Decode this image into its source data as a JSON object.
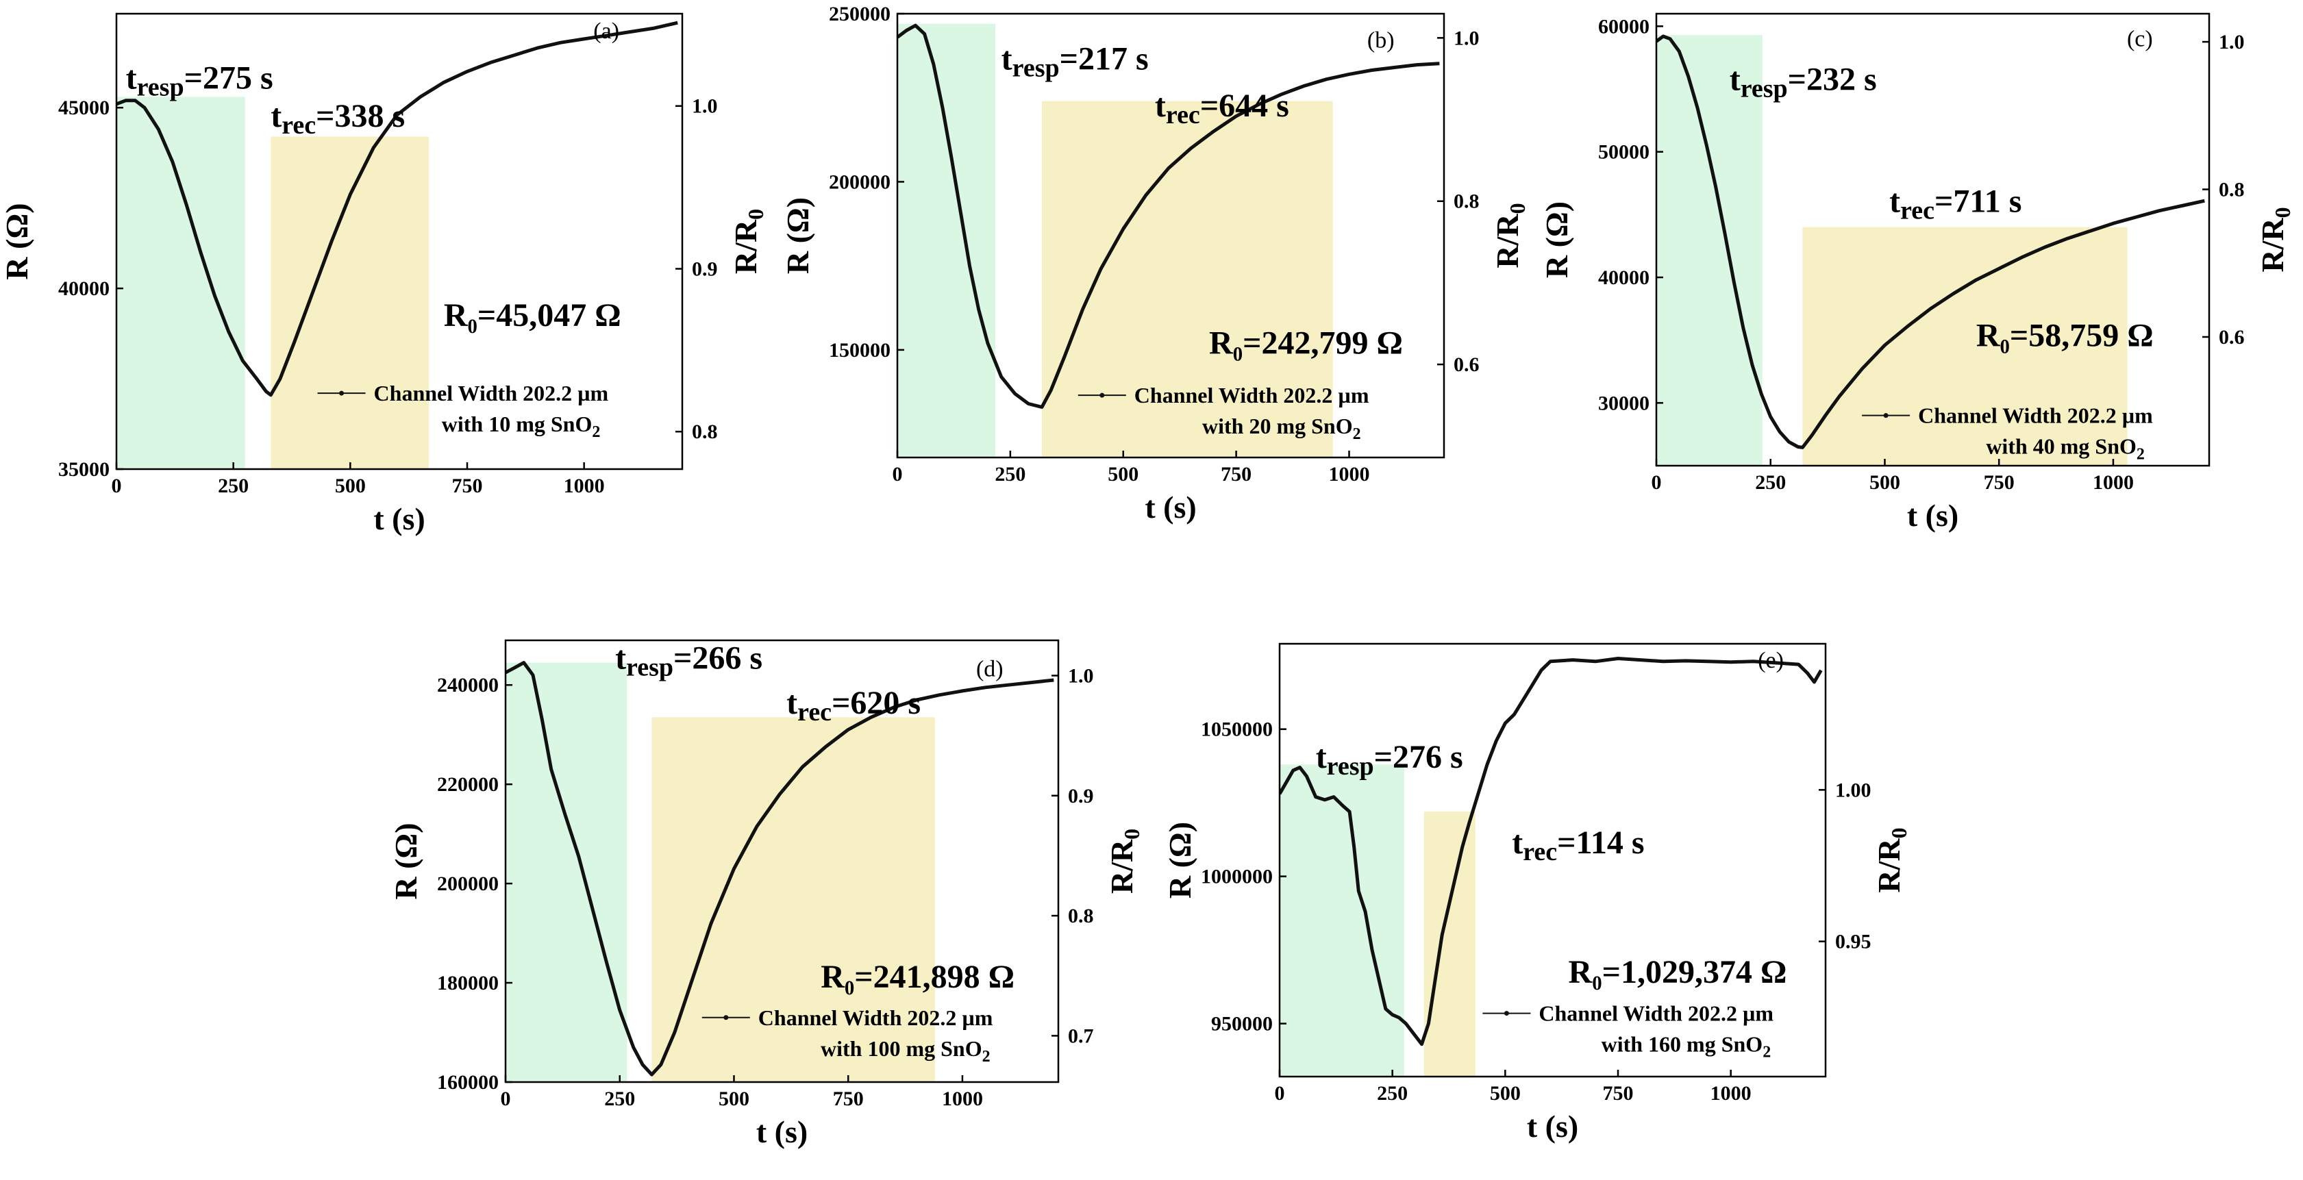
{
  "figure": {
    "x_axis_label": "t (s)",
    "y_left_label": "R (Ω)",
    "y_right_label_main": "R/R",
    "y_right_label_sub": "0"
  },
  "colors": {
    "response_shade": "#d9f7e3",
    "recovery_shade": "#f7f0c4",
    "curve": "#111111",
    "axes": "#000000"
  },
  "chart_data": [
    {
      "type": "line",
      "panel_label": "(a)",
      "xlabel": "t (s)",
      "ylabel": "R (Ω)",
      "y2label": "R/R0",
      "xlim": [
        0,
        1210
      ],
      "ylim": [
        35000,
        47600
      ],
      "xticks": [
        0,
        250,
        500,
        750,
        1000
      ],
      "yticks": [
        35000,
        40000,
        45000
      ],
      "ytick_labels": [
        "35000",
        "40000",
        "45000"
      ],
      "y2ticks": [
        0.8,
        0.9,
        1.0
      ],
      "y2tick_labels": [
        "0.8",
        "0.9",
        "1.0"
      ],
      "R0": 45047,
      "resp_time": "t_resp=275 s",
      "rec_time": "t_rec=338 s",
      "R0_label": "R₀=45,047 Ω",
      "resp_band": {
        "x": [
          0,
          275
        ],
        "y_top": 45300
      },
      "rec_band": {
        "x": [
          330,
          668
        ],
        "y_top": 44200
      },
      "legend_line1": "Channel Width 202.2 µm",
      "legend_line2_pre": "with 10 mg SnO",
      "legend_line2_sub": "2",
      "series": [
        {
          "name": "Channel Width 202.2 µm with 10 mg SnO2",
          "x": [
            0,
            20,
            40,
            60,
            90,
            120,
            150,
            180,
            210,
            240,
            270,
            300,
            320,
            330,
            350,
            380,
            420,
            460,
            500,
            550,
            600,
            650,
            700,
            750,
            800,
            850,
            900,
            950,
            1000,
            1050,
            1100,
            1150,
            1200
          ],
          "y": [
            45100,
            45200,
            45200,
            45000,
            44400,
            43500,
            42300,
            41000,
            39800,
            38800,
            38000,
            37500,
            37150,
            37050,
            37500,
            38500,
            39900,
            41300,
            42600,
            43900,
            44800,
            45300,
            45700,
            46000,
            46250,
            46450,
            46650,
            46800,
            46900,
            47000,
            47100,
            47200,
            47350
          ]
        }
      ],
      "labels_pos": {
        "resp": [
          20,
          45900
        ],
        "rec": [
          330,
          44850
        ],
        "R0": [
          700,
          39300
        ],
        "panel": [
          1020,
          47300
        ],
        "legend": [
          430,
          37100
        ]
      }
    },
    {
      "type": "line",
      "panel_label": "(b)",
      "xlabel": "t (s)",
      "ylabel": "R (Ω)",
      "y2label": "R/R0",
      "xlim": [
        0,
        1210
      ],
      "ylim": [
        118000,
        250000
      ],
      "xticks": [
        0,
        250,
        500,
        750,
        1000
      ],
      "yticks": [
        150000,
        200000,
        250000
      ],
      "ytick_labels": [
        "150000",
        "200000",
        "250000"
      ],
      "y2ticks": [
        0.6,
        0.8,
        1.0
      ],
      "y2tick_labels": [
        "0.6",
        "0.8",
        "1.0"
      ],
      "R0": 242799,
      "resp_time": "t_resp=217 s",
      "rec_time": "t_rec=644 s",
      "R0_label": "R₀=242,799 Ω",
      "resp_band": {
        "x": [
          0,
          217
        ],
        "y_top": 247000
      },
      "rec_band": {
        "x": [
          320,
          964
        ],
        "y_top": 224000
      },
      "legend_line1": "Channel Width 202.2 µm",
      "legend_line2_pre": "with 20 mg SnO",
      "legend_line2_sub": "2",
      "series": [
        {
          "name": "Channel Width 202.2 µm with 20 mg SnO2",
          "x": [
            0,
            20,
            40,
            60,
            80,
            100,
            120,
            140,
            160,
            180,
            200,
            230,
            260,
            290,
            320,
            340,
            370,
            410,
            450,
            500,
            550,
            600,
            650,
            700,
            750,
            800,
            850,
            900,
            950,
            1000,
            1050,
            1100,
            1150,
            1200
          ],
          "y": [
            243000,
            245000,
            246500,
            244000,
            235000,
            222000,
            207000,
            191000,
            175000,
            162000,
            152000,
            142000,
            137000,
            134000,
            133000,
            138000,
            148000,
            162000,
            174000,
            186000,
            196000,
            204000,
            210000,
            215000,
            219500,
            223000,
            226000,
            228500,
            230500,
            232000,
            233200,
            234000,
            234800,
            235200
          ]
        }
      ],
      "labels_pos": {
        "resp": [
          230,
          237500
        ],
        "rec": [
          570,
          223500
        ],
        "R0": [
          690,
          152500
        ],
        "panel": [
          1040,
          244000
        ],
        "legend": [
          400,
          136500
        ]
      }
    },
    {
      "type": "line",
      "panel_label": "(c)",
      "xlabel": "t (s)",
      "ylabel": "R (Ω)",
      "y2label": "R/R0",
      "xlim": [
        0,
        1210
      ],
      "ylim": [
        25000,
        61000
      ],
      "xticks": [
        0,
        250,
        500,
        750,
        1000
      ],
      "yticks": [
        30000,
        40000,
        50000,
        60000
      ],
      "ytick_labels": [
        "30000",
        "40000",
        "50000",
        "60000"
      ],
      "y2ticks": [
        0.6,
        0.8,
        1.0
      ],
      "y2tick_labels": [
        "0.6",
        "0.8",
        "1.0"
      ],
      "R0": 58759,
      "resp_time": "t_resp=232 s",
      "rec_time": "t_rec=711 s",
      "R0_label": "R₀=58,759 Ω",
      "resp_band": {
        "x": [
          0,
          232
        ],
        "y_top": 59300
      },
      "rec_band": {
        "x": [
          320,
          1031
        ],
        "y_top": 44000
      },
      "legend_line1": "Channel Width 202.2 µm",
      "legend_line2_pre": "with 40 mg SnO",
      "legend_line2_sub": "2",
      "series": [
        {
          "name": "Channel Width 202.2 µm with 40 mg SnO2",
          "x": [
            0,
            15,
            30,
            50,
            70,
            90,
            110,
            130,
            150,
            170,
            190,
            210,
            230,
            250,
            270,
            290,
            310,
            320,
            340,
            370,
            400,
            450,
            500,
            550,
            600,
            650,
            700,
            750,
            800,
            850,
            900,
            950,
            1000,
            1050,
            1100,
            1150,
            1200
          ],
          "y": [
            58800,
            59200,
            59000,
            58000,
            56000,
            53500,
            50500,
            47200,
            43500,
            39600,
            36000,
            33000,
            30700,
            28900,
            27700,
            26900,
            26500,
            26450,
            27400,
            29000,
            30500,
            32700,
            34600,
            36100,
            37500,
            38700,
            39800,
            40700,
            41600,
            42400,
            43100,
            43700,
            44300,
            44800,
            45300,
            45700,
            46100
          ]
        }
      ],
      "labels_pos": {
        "resp": [
          160,
          56000
        ],
        "rec": [
          510,
          46300
        ],
        "R0": [
          700,
          35500
        ],
        "panel": [
          1030,
          59500
        ],
        "legend": [
          450,
          29000
        ]
      }
    },
    {
      "type": "line",
      "panel_label": "(d)",
      "xlabel": "t (s)",
      "ylabel": "R (Ω)",
      "y2label": "R/R0",
      "xlim": [
        0,
        1210
      ],
      "ylim": [
        160000,
        249000
      ],
      "xticks": [
        0,
        250,
        500,
        750,
        1000
      ],
      "yticks": [
        160000,
        180000,
        200000,
        220000,
        240000
      ],
      "ytick_labels": [
        "160000",
        "180000",
        "200000",
        "220000",
        "240000"
      ],
      "y2ticks": [
        0.7,
        0.8,
        0.9,
        1.0
      ],
      "y2tick_labels": [
        "0.7",
        "0.8",
        "0.9",
        "1.0"
      ],
      "R0": 241898,
      "resp_time": "t_resp=266 s",
      "rec_time": "t_rec=620 s",
      "R0_label": "R₀=241,898 Ω",
      "resp_band": {
        "x": [
          0,
          266
        ],
        "y_top": 244500
      },
      "rec_band": {
        "x": [
          320,
          940
        ],
        "y_top": 233500
      },
      "legend_line1": "Channel Width 202.2 µm",
      "legend_line2_pre": "with 100 mg SnO",
      "legend_line2_sub": "2",
      "series": [
        {
          "name": "Channel Width 202.2 µm with 100 mg SnO2",
          "x": [
            0,
            20,
            40,
            60,
            80,
            100,
            130,
            160,
            190,
            220,
            250,
            280,
            300,
            320,
            340,
            370,
            410,
            450,
            500,
            550,
            600,
            650,
            700,
            750,
            800,
            850,
            900,
            950,
            1000,
            1050,
            1100,
            1150,
            1200
          ],
          "y": [
            242500,
            243500,
            244500,
            242000,
            233000,
            223000,
            214000,
            205500,
            195000,
            184500,
            174500,
            167000,
            163500,
            161500,
            163500,
            170000,
            181000,
            192000,
            203000,
            211500,
            218000,
            223500,
            227500,
            231000,
            233500,
            235500,
            237000,
            238000,
            238800,
            239500,
            240000,
            240500,
            241000
          ]
        }
      ],
      "labels_pos": {
        "resp": [
          240,
          246000
        ],
        "rec": [
          615,
          237000
        ],
        "R0": [
          690,
          181500
        ],
        "panel": [
          1030,
          244500
        ],
        "legend": [
          430,
          173000
        ]
      }
    },
    {
      "type": "line",
      "panel_label": "(e)",
      "xlabel": "t (s)",
      "ylabel": "R (Ω)",
      "y2label": "R/R0",
      "xlim": [
        0,
        1210
      ],
      "ylim": [
        932000,
        1079000
      ],
      "xticks": [
        0,
        250,
        500,
        750,
        1000
      ],
      "yticks": [
        950000,
        1000000,
        1050000
      ],
      "ytick_labels": [
        "950000",
        "1000000",
        "1050000"
      ],
      "y2ticks": [
        0.95,
        1.0
      ],
      "y2tick_labels": [
        "0.95",
        "1.00"
      ],
      "R0": 1029374,
      "resp_time": "t_resp=276 s",
      "rec_time": "t_rec=114 s",
      "R0_label": "R₀=1,029,374 Ω",
      "resp_band": {
        "x": [
          0,
          276
        ],
        "y_top": 1038000
      },
      "rec_band": {
        "x": [
          320,
          434
        ],
        "y_top": 1022000
      },
      "legend_line1": "Channel Width 202.2 µm",
      "legend_line2_pre": "with 160 mg SnO",
      "legend_line2_sub": "2",
      "series": [
        {
          "name": "Channel Width 202.2 µm with 160 mg SnO2",
          "x": [
            0,
            15,
            30,
            45,
            60,
            80,
            100,
            120,
            140,
            155,
            165,
            175,
            190,
            205,
            220,
            235,
            250,
            265,
            280,
            300,
            315,
            330,
            345,
            360,
            375,
            390,
            405,
            420,
            440,
            460,
            480,
            500,
            520,
            540,
            560,
            580,
            600,
            650,
            700,
            750,
            800,
            850,
            900,
            950,
            1000,
            1050,
            1100,
            1150,
            1170,
            1185,
            1200
          ],
          "y": [
            1028000,
            1032000,
            1036000,
            1037000,
            1034000,
            1027000,
            1026000,
            1027000,
            1024000,
            1022000,
            1010000,
            995000,
            988000,
            975000,
            965000,
            955000,
            953000,
            952000,
            950000,
            946000,
            943000,
            950000,
            965000,
            980000,
            990000,
            1000000,
            1010000,
            1018000,
            1028000,
            1038000,
            1046000,
            1052000,
            1055000,
            1060000,
            1065000,
            1070000,
            1073000,
            1073500,
            1073000,
            1074000,
            1073500,
            1073000,
            1073200,
            1073000,
            1072800,
            1073000,
            1072500,
            1072000,
            1069000,
            1066000,
            1070000
          ]
        }
      ],
      "labels_pos": {
        "resp": [
          80,
          1041500
        ],
        "rec": [
          515,
          1012500
        ],
        "R0": [
          640,
          968000
        ],
        "panel": [
          1060,
          1075500
        ],
        "legend": [
          450,
          953500
        ]
      }
    }
  ]
}
